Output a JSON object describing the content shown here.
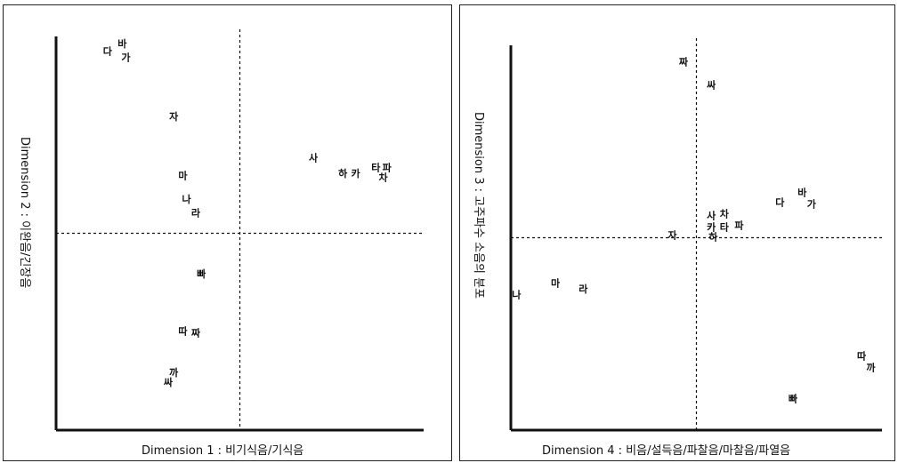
{
  "chart_data": [
    {
      "type": "scatter",
      "xlabel": "Dimension 1 : 비기식음/기식음",
      "ylabel": "Dimension 2 : 이완음/긴장음",
      "xlim": [
        -1,
        1
      ],
      "ylim": [
        -1,
        1
      ],
      "grid": false,
      "points": [
        {
          "label": "다",
          "x": -0.72,
          "y": 0.92
        },
        {
          "label": "바",
          "x": -0.64,
          "y": 0.96
        },
        {
          "label": "가",
          "x": -0.62,
          "y": 0.89
        },
        {
          "label": "자",
          "x": -0.36,
          "y": 0.59
        },
        {
          "label": "사",
          "x": 0.4,
          "y": 0.38
        },
        {
          "label": "타",
          "x": 0.74,
          "y": 0.33
        },
        {
          "label": "파",
          "x": 0.8,
          "y": 0.33
        },
        {
          "label": "하",
          "x": 0.56,
          "y": 0.3
        },
        {
          "label": "카",
          "x": 0.63,
          "y": 0.3
        },
        {
          "label": "차",
          "x": 0.78,
          "y": 0.28
        },
        {
          "label": "마",
          "x": -0.31,
          "y": 0.29
        },
        {
          "label": "나",
          "x": -0.29,
          "y": 0.17
        },
        {
          "label": "라",
          "x": -0.24,
          "y": 0.1
        },
        {
          "label": "빠",
          "x": -0.21,
          "y": -0.21
        },
        {
          "label": "따",
          "x": -0.31,
          "y": -0.5
        },
        {
          "label": "짜",
          "x": -0.24,
          "y": -0.51
        },
        {
          "label": "까",
          "x": -0.36,
          "y": -0.71
        },
        {
          "label": "싸",
          "x": -0.39,
          "y": -0.76
        }
      ]
    },
    {
      "type": "scatter",
      "xlabel": "Dimension 4 : 비음/설득음/파찰음/마찰음/파열음",
      "ylabel": "Dimension 3 : 고주파수 소음의 분포",
      "xlim": [
        -1,
        1
      ],
      "ylim": [
        -1,
        1
      ],
      "grid": false,
      "points": [
        {
          "label": "짜",
          "x": -0.07,
          "y": 0.91
        },
        {
          "label": "싸",
          "x": 0.08,
          "y": 0.79
        },
        {
          "label": "다",
          "x": 0.45,
          "y": 0.18
        },
        {
          "label": "바",
          "x": 0.57,
          "y": 0.23
        },
        {
          "label": "가",
          "x": 0.62,
          "y": 0.17
        },
        {
          "label": "사",
          "x": 0.08,
          "y": 0.11
        },
        {
          "label": "차",
          "x": 0.15,
          "y": 0.12
        },
        {
          "label": "파",
          "x": 0.23,
          "y": 0.06
        },
        {
          "label": "카",
          "x": 0.08,
          "y": 0.05
        },
        {
          "label": "타",
          "x": 0.15,
          "y": 0.05
        },
        {
          "label": "하",
          "x": 0.09,
          "y": 0.0
        },
        {
          "label": "자",
          "x": -0.13,
          "y": 0.01
        },
        {
          "label": "나",
          "x": -0.97,
          "y": -0.3
        },
        {
          "label": "마",
          "x": -0.76,
          "y": -0.24
        },
        {
          "label": "라",
          "x": -0.61,
          "y": -0.27
        },
        {
          "label": "따",
          "x": 0.89,
          "y": -0.62
        },
        {
          "label": "까",
          "x": 0.94,
          "y": -0.68
        },
        {
          "label": "빠",
          "x": 0.52,
          "y": -0.84
        }
      ]
    }
  ]
}
